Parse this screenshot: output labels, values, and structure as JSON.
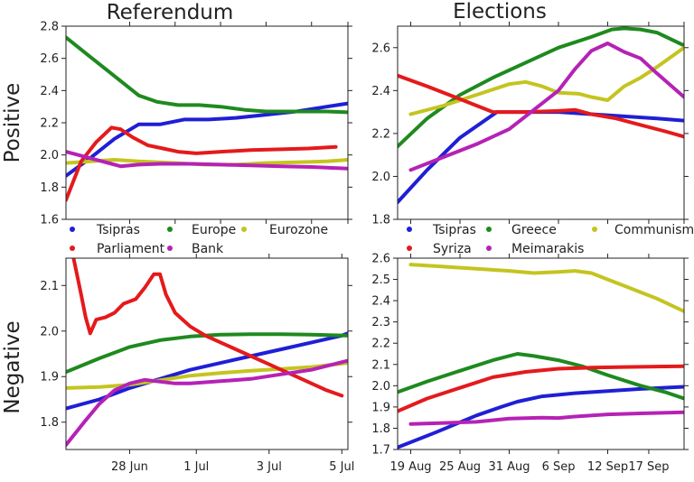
{
  "figure": {
    "col_titles": [
      "Referendum",
      "Elections"
    ],
    "row_labels": [
      "Positive",
      "Negative"
    ]
  },
  "colors": {
    "Tsipras": "#1f1fd6",
    "Europe": "#1e8a1e",
    "Greece": "#1e8a1e",
    "Eurozone": "#c4c420",
    "Communism": "#c4c420",
    "Parliament": "#e41a1c",
    "Syriza": "#e41a1c",
    "Bank": "#b522b5",
    "Meimarakis": "#b522b5"
  },
  "chart_data": [
    {
      "id": "ref-pos",
      "type": "line",
      "title": "Referendum",
      "ylabel": "Positive",
      "x_unit": "days since 28 Jun",
      "xlim": [
        -2.1,
        7.2
      ],
      "ylim": [
        1.6,
        2.8
      ],
      "yticks": [
        1.6,
        1.8,
        2.0,
        2.2,
        2.4,
        2.6,
        2.8
      ],
      "yticklabels": [
        "1.6",
        "1.8",
        "2.0",
        "2.2",
        "2.4",
        "2.6",
        "2.8"
      ],
      "xticks": [
        0,
        1.5,
        3,
        4.5,
        6,
        7.2
      ],
      "xticklabels": [],
      "legend": [
        "Tsipras",
        "Europe",
        "Eurozone",
        "Parliament",
        "Bank"
      ],
      "series": [
        {
          "name": "Tsipras",
          "x": [
            -2.1,
            -1.3,
            -0.5,
            0.3,
            1.0,
            1.8,
            2.6,
            3.5,
            4.5,
            5.5,
            6.5,
            7.2
          ],
          "y": [
            1.87,
            1.98,
            2.1,
            2.19,
            2.19,
            2.22,
            2.22,
            2.23,
            2.25,
            2.27,
            2.3,
            2.32
          ]
        },
        {
          "name": "Europe",
          "x": [
            -2.1,
            -1.3,
            -0.5,
            0.3,
            0.9,
            1.6,
            2.3,
            3.0,
            3.8,
            4.5,
            5.5,
            6.5,
            7.2
          ],
          "y": [
            2.73,
            2.61,
            2.49,
            2.37,
            2.33,
            2.31,
            2.31,
            2.3,
            2.28,
            2.27,
            2.27,
            2.27,
            2.265
          ]
        },
        {
          "name": "Eurozone",
          "x": [
            -2.1,
            -1.3,
            -0.5,
            0.3,
            1.5,
            2.5,
            3.5,
            4.5,
            5.5,
            6.5,
            7.2
          ],
          "y": [
            1.95,
            1.96,
            1.97,
            1.96,
            1.95,
            1.94,
            1.94,
            1.95,
            1.955,
            1.96,
            1.97
          ]
        },
        {
          "name": "Parliament",
          "x": [
            -2.1,
            -1.6,
            -1.1,
            -0.6,
            -0.3,
            0.1,
            0.6,
            1.1,
            1.6,
            2.2,
            3.0,
            4.0,
            5.0,
            5.9,
            6.8
          ],
          "y": [
            1.72,
            1.96,
            2.08,
            2.17,
            2.16,
            2.11,
            2.06,
            2.04,
            2.02,
            2.01,
            2.02,
            2.03,
            2.035,
            2.04,
            2.05
          ]
        },
        {
          "name": "Bank",
          "x": [
            -2.1,
            -1.5,
            -0.9,
            -0.3,
            0.3,
            1.0,
            2.0,
            3.0,
            4.0,
            5.0,
            6.0,
            7.2
          ],
          "y": [
            2.02,
            1.99,
            1.96,
            1.93,
            1.94,
            1.945,
            1.945,
            1.94,
            1.935,
            1.93,
            1.925,
            1.915
          ]
        }
      ]
    },
    {
      "id": "ref-neg",
      "type": "line",
      "title": "",
      "ylabel": "Negative",
      "x_unit": "days since 28 Jun",
      "xlim": [
        -2.1,
        7.2
      ],
      "ylim": [
        1.74,
        2.16
      ],
      "yticks": [
        1.8,
        1.9,
        2.0,
        2.1
      ],
      "yticklabels": [
        "1.8",
        "1.9",
        "2.0",
        "2.1"
      ],
      "xticks": [
        0,
        2.2,
        4.6,
        7.0
      ],
      "xticklabels": [
        "28 Jun",
        "1 Jul",
        "3 Jul",
        "5 Jul"
      ],
      "series": [
        {
          "name": "Tsipras",
          "x": [
            -2.1,
            -1.0,
            0.0,
            1.0,
            2.0,
            3.0,
            4.0,
            5.0,
            6.0,
            7.0,
            7.2
          ],
          "y": [
            1.83,
            1.85,
            1.875,
            1.895,
            1.915,
            1.93,
            1.945,
            1.96,
            1.975,
            1.99,
            1.995
          ]
        },
        {
          "name": "Europe",
          "x": [
            -2.1,
            -1.0,
            0.0,
            1.0,
            2.0,
            3.0,
            4.0,
            5.0,
            6.0,
            7.2
          ],
          "y": [
            1.91,
            1.94,
            1.965,
            1.98,
            1.988,
            1.992,
            1.993,
            1.993,
            1.992,
            1.99
          ]
        },
        {
          "name": "Eurozone",
          "x": [
            -2.1,
            -1.0,
            0.0,
            1.0,
            2.0,
            3.0,
            4.0,
            5.0,
            6.0,
            7.2
          ],
          "y": [
            1.875,
            1.877,
            1.882,
            1.892,
            1.902,
            1.908,
            1.913,
            1.917,
            1.921,
            1.93
          ]
        },
        {
          "name": "Parliament",
          "x": [
            -1.85,
            -1.6,
            -1.45,
            -1.3,
            -1.1,
            -0.8,
            -0.5,
            -0.2,
            0.2,
            0.5,
            0.8,
            1.0,
            1.2,
            1.5,
            2.0,
            2.5,
            3.0,
            3.5,
            4.0,
            4.5,
            5.0,
            5.5,
            6.0,
            6.5,
            7.0
          ],
          "y": [
            2.16,
            2.08,
            2.03,
            1.995,
            2.025,
            2.03,
            2.04,
            2.06,
            2.07,
            2.095,
            2.125,
            2.125,
            2.08,
            2.04,
            2.01,
            1.99,
            1.975,
            1.96,
            1.945,
            1.93,
            1.915,
            1.9,
            1.885,
            1.87,
            1.858
          ]
        },
        {
          "name": "Bank",
          "x": [
            -2.1,
            -1.5,
            -1.0,
            -0.5,
            0.0,
            0.5,
            1.0,
            1.5,
            2.0,
            3.0,
            4.0,
            5.0,
            6.0,
            7.2
          ],
          "y": [
            1.75,
            1.8,
            1.84,
            1.87,
            1.885,
            1.893,
            1.889,
            1.885,
            1.885,
            1.89,
            1.895,
            1.905,
            1.915,
            1.935
          ]
        }
      ]
    },
    {
      "id": "el-pos",
      "type": "line",
      "title": "Elections",
      "ylabel": "",
      "x_unit": "days since 19 Aug",
      "xlim": [
        -1.6,
        33.3
      ],
      "ylim": [
        1.8,
        2.7
      ],
      "yticks": [
        1.8,
        2.0,
        2.2,
        2.4,
        2.6
      ],
      "yticklabels": [
        "1.8",
        "2.0",
        "2.2",
        "2.4",
        "2.6"
      ],
      "xticks": [
        0,
        6,
        12,
        18,
        24,
        29,
        33.3
      ],
      "xticklabels": [],
      "legend": [
        "Tsipras",
        "Greece",
        "Communism",
        "Syriza",
        "Meimarakis"
      ],
      "series": [
        {
          "name": "Tsipras",
          "x": [
            -1.6,
            2,
            6,
            10.5,
            14,
            18,
            22,
            26,
            30,
            33.3
          ],
          "y": [
            1.88,
            2.03,
            2.18,
            2.3,
            2.3,
            2.3,
            2.29,
            2.28,
            2.27,
            2.26
          ]
        },
        {
          "name": "Greece",
          "x": [
            -1.6,
            2,
            6,
            10,
            14,
            18,
            22,
            24.5,
            26,
            28,
            30,
            33.3
          ],
          "y": [
            2.14,
            2.27,
            2.38,
            2.46,
            2.53,
            2.6,
            2.65,
            2.685,
            2.69,
            2.685,
            2.67,
            2.61
          ]
        },
        {
          "name": "Communism",
          "x": [
            0,
            4,
            8,
            12,
            14,
            16,
            18,
            20.5,
            22,
            24,
            26,
            28,
            30,
            33.3
          ],
          "y": [
            2.29,
            2.33,
            2.38,
            2.43,
            2.44,
            2.42,
            2.39,
            2.385,
            2.37,
            2.355,
            2.42,
            2.46,
            2.51,
            2.6
          ]
        },
        {
          "name": "Syriza",
          "x": [
            -1.6,
            2,
            6,
            10,
            14,
            18,
            20,
            22,
            25,
            28,
            31,
            33.3
          ],
          "y": [
            2.47,
            2.42,
            2.36,
            2.3,
            2.3,
            2.305,
            2.31,
            2.29,
            2.27,
            2.24,
            2.21,
            2.185
          ]
        },
        {
          "name": "Meimarakis",
          "x": [
            0,
            4,
            8,
            12,
            15,
            18,
            20,
            22,
            24,
            26,
            28,
            30,
            33.3
          ],
          "y": [
            2.03,
            2.09,
            2.15,
            2.22,
            2.31,
            2.4,
            2.5,
            2.585,
            2.62,
            2.58,
            2.55,
            2.48,
            2.37
          ]
        }
      ]
    },
    {
      "id": "el-neg",
      "type": "line",
      "title": "",
      "ylabel": "",
      "x_unit": "days since 19 Aug",
      "xlim": [
        -1.6,
        33.3
      ],
      "ylim": [
        1.7,
        2.6
      ],
      "yticks": [
        1.7,
        1.8,
        1.9,
        2.0,
        2.1,
        2.2,
        2.3,
        2.4,
        2.5,
        2.6
      ],
      "yticklabels": [
        "1.7",
        "1.8",
        "1.9",
        "2.0",
        "2.1",
        "2.2",
        "2.3",
        "2.4",
        "2.5",
        "2.6"
      ],
      "xticks": [
        0,
        6,
        12,
        18,
        24,
        29
      ],
      "xticklabels": [
        "19 Aug",
        "25 Aug",
        "31 Aug",
        "6 Sep",
        "12 Sep",
        "17 Sep"
      ],
      "series": [
        {
          "name": "Tsipras",
          "x": [
            -1.6,
            3,
            8,
            11,
            13,
            16,
            20,
            24,
            28,
            33.3
          ],
          "y": [
            1.71,
            1.78,
            1.86,
            1.9,
            1.925,
            1.95,
            1.965,
            1.975,
            1.985,
            1.995
          ]
        },
        {
          "name": "Greece",
          "x": [
            -1.6,
            2,
            6,
            10,
            13,
            15,
            18,
            21,
            24,
            28,
            31,
            33.3
          ],
          "y": [
            1.97,
            2.02,
            2.07,
            2.12,
            2.15,
            2.14,
            2.12,
            2.09,
            2.05,
            2.0,
            1.97,
            1.94
          ]
        },
        {
          "name": "Communism",
          "x": [
            0,
            4,
            8,
            12,
            15,
            18,
            20,
            22,
            24,
            26,
            28,
            30,
            33.3
          ],
          "y": [
            2.57,
            2.56,
            2.55,
            2.54,
            2.53,
            2.535,
            2.54,
            2.53,
            2.5,
            2.47,
            2.44,
            2.41,
            2.35
          ]
        },
        {
          "name": "Syriza",
          "x": [
            -1.6,
            2,
            6,
            10,
            14,
            18,
            22,
            26,
            30,
            33.3
          ],
          "y": [
            1.88,
            1.94,
            1.99,
            2.04,
            2.065,
            2.08,
            2.085,
            2.088,
            2.09,
            2.092
          ]
        },
        {
          "name": "Meimarakis",
          "x": [
            0,
            4,
            8,
            12,
            16,
            18,
            20,
            24,
            28,
            33.3
          ],
          "y": [
            1.82,
            1.825,
            1.83,
            1.845,
            1.85,
            1.848,
            1.855,
            1.865,
            1.87,
            1.875
          ]
        }
      ]
    }
  ]
}
